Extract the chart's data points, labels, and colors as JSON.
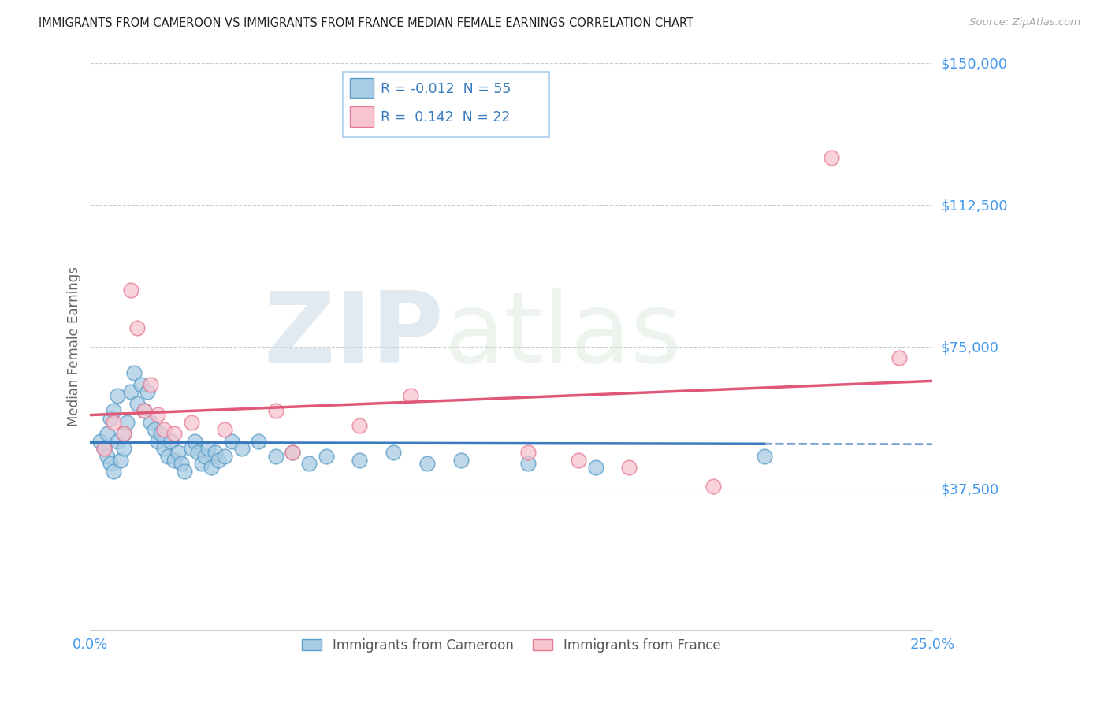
{
  "title": "IMMIGRANTS FROM CAMEROON VS IMMIGRANTS FROM FRANCE MEDIAN FEMALE EARNINGS CORRELATION CHART",
  "source": "Source: ZipAtlas.com",
  "ylabel": "Median Female Earnings",
  "xlim": [
    0.0,
    0.25
  ],
  "ylim": [
    0,
    150000
  ],
  "yticks": [
    0,
    37500,
    75000,
    112500,
    150000
  ],
  "xticks": [
    0.0,
    0.05,
    0.1,
    0.15,
    0.2,
    0.25
  ],
  "cameroon_R": -0.012,
  "cameroon_N": 55,
  "france_R": 0.142,
  "france_N": 22,
  "cameroon_color": "#a8cce4",
  "cameroon_edge_color": "#5b9ec9",
  "france_color": "#f7c5d0",
  "france_edge_color": "#e87a96",
  "cameroon_line_color": "#3a7abf",
  "france_line_color": "#e05878",
  "background_color": "#ffffff",
  "grid_color": "#cccccc",
  "watermark_zip": "ZIP",
  "watermark_atlas": "atlas",
  "title_color": "#222222",
  "axis_label_color": "#666666",
  "tick_label_color": "#4499ee",
  "cameroon_x": [
    0.003,
    0.004,
    0.005,
    0.005,
    0.006,
    0.006,
    0.007,
    0.007,
    0.008,
    0.008,
    0.009,
    0.01,
    0.01,
    0.011,
    0.012,
    0.013,
    0.014,
    0.015,
    0.016,
    0.017,
    0.018,
    0.019,
    0.02,
    0.021,
    0.022,
    0.023,
    0.024,
    0.025,
    0.026,
    0.027,
    0.028,
    0.03,
    0.031,
    0.032,
    0.033,
    0.034,
    0.035,
    0.036,
    0.037,
    0.038,
    0.04,
    0.042,
    0.045,
    0.05,
    0.055,
    0.06,
    0.065,
    0.07,
    0.08,
    0.09,
    0.1,
    0.11,
    0.13,
    0.15,
    0.2
  ],
  "cameroon_y": [
    50000,
    48000,
    46000,
    52000,
    44000,
    56000,
    42000,
    58000,
    50000,
    62000,
    45000,
    52000,
    48000,
    55000,
    63000,
    68000,
    60000,
    65000,
    58000,
    63000,
    55000,
    53000,
    50000,
    52000,
    48000,
    46000,
    50000,
    45000,
    47000,
    44000,
    42000,
    48000,
    50000,
    47000,
    44000,
    46000,
    48000,
    43000,
    47000,
    45000,
    46000,
    50000,
    48000,
    50000,
    46000,
    47000,
    44000,
    46000,
    45000,
    47000,
    44000,
    45000,
    44000,
    43000,
    46000
  ],
  "france_x": [
    0.004,
    0.007,
    0.01,
    0.012,
    0.014,
    0.016,
    0.018,
    0.02,
    0.022,
    0.025,
    0.03,
    0.04,
    0.055,
    0.06,
    0.08,
    0.095,
    0.13,
    0.145,
    0.16,
    0.185,
    0.22,
    0.24
  ],
  "france_y": [
    48000,
    55000,
    52000,
    90000,
    80000,
    58000,
    65000,
    57000,
    53000,
    52000,
    55000,
    53000,
    58000,
    47000,
    54000,
    62000,
    47000,
    45000,
    43000,
    38000,
    125000,
    72000
  ],
  "dot_size": 180,
  "dot_linewidth": 1.2
}
